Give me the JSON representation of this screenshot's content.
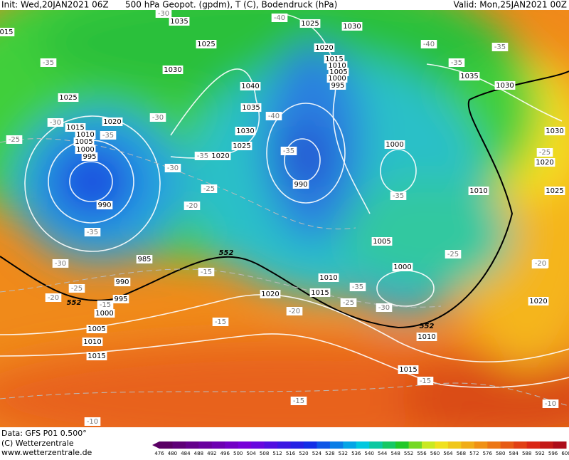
{
  "header": {
    "init": "Init: Wed,20JAN2021 06Z",
    "title": "500 hPa Geopot. (gpdm), T (C), Bodendruck (hPa)",
    "valid": "Valid: Mon,25JAN2021 00Z"
  },
  "footer": {
    "data": "Data: GFS P01 0.500°",
    "copyright": "(C) Wetterzentrale",
    "url": "www.wetterzentrale.de"
  },
  "colorbar": {
    "ticks": [
      476,
      480,
      484,
      488,
      492,
      496,
      500,
      504,
      508,
      512,
      516,
      520,
      524,
      528,
      532,
      536,
      540,
      544,
      548,
      552,
      556,
      560,
      564,
      568,
      572,
      576,
      580,
      584,
      588,
      592,
      596,
      600
    ]
  },
  "map": {
    "pressure_labels": [
      "1035",
      "1030",
      "1025",
      "1025",
      "1030",
      "1020",
      "1015",
      "1010",
      "1005",
      "1000",
      "995",
      "1040",
      "1030",
      "1035",
      "1025",
      "1020",
      "1015",
      "1010",
      "1005",
      "1000",
      "995",
      "1035",
      "1030",
      "1025",
      "1020",
      "1030",
      "1020",
      "1025",
      "1000",
      "990",
      "990",
      "1010",
      "1005",
      "985",
      "990",
      "995",
      "1000",
      "1005",
      "1010",
      "1015",
      "1020",
      "1010",
      "1015",
      "1000",
      "1010",
      "1015",
      "1020",
      "015"
    ],
    "temperature_labels": [
      "-30",
      "-40",
      "-35",
      "-30",
      "-30",
      "-35",
      "-25",
      "-35",
      "-30",
      "-35",
      "-40",
      "-25",
      "-20",
      "-35",
      "-30",
      "-25",
      "-20",
      "-15",
      "-15",
      "-20",
      "-15",
      "-25",
      "-30",
      "-35",
      "-35",
      "-25",
      "-40",
      "-35",
      "-35",
      "-25",
      "-20",
      "-15",
      "-15",
      "-10",
      "-10",
      "-20"
    ],
    "line_552_labels": [
      "552",
      "552",
      "552"
    ]
  }
}
